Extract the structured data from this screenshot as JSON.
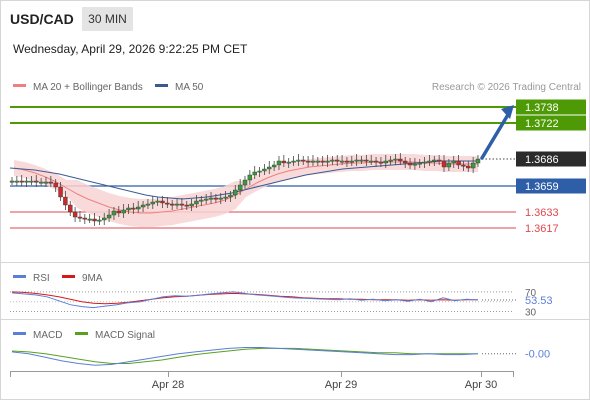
{
  "header": {
    "symbol": "USD/CAD",
    "timeframe": "30 MIN",
    "datetime": "Wednesday, April 29, 2026 9:22:25 PM CET",
    "credit": "Research © 2026 Trading Central"
  },
  "colors": {
    "green": "#4e9a06",
    "blue": "#2f5ea8",
    "red": "#e0474c",
    "bollinger": "#f8d3d3",
    "ma20": "#f08080",
    "ma50": "#3a5a94",
    "candle_up": "#3a9a3a",
    "candle_down": "#cc2a2a",
    "rsi": "#5b7fd6",
    "rsi_ma": "#d61a1a",
    "macd": "#5b7fd6",
    "macd_signal": "#5aa020",
    "arrow": "#2f5ea8"
  },
  "chart_data": [
    {
      "type": "candlestick",
      "legend": [
        {
          "name": "MA 20 + Bollinger Bands",
          "color": "#f08080"
        },
        {
          "name": "MA 50",
          "color": "#3a5a94"
        }
      ],
      "ylim": [
        1.359,
        1.375
      ],
      "current_price": 1.3686,
      "levels": [
        {
          "label": "1.3738",
          "value": 1.3738,
          "kind": "resistance"
        },
        {
          "label": "1.3722",
          "value": 1.3722,
          "kind": "resistance"
        },
        {
          "label": "1.3659",
          "value": 1.3659,
          "kind": "pivot"
        },
        {
          "label": "1.3633",
          "value": 1.3633,
          "kind": "support"
        },
        {
          "label": "1.3617",
          "value": 1.3617,
          "kind": "support"
        }
      ],
      "x_ticks": [
        "Apr 28",
        "Apr 29",
        "Apr 30"
      ],
      "close_series": [
        1.3664,
        1.3664,
        1.3663,
        1.3664,
        1.3664,
        1.3663,
        1.3663,
        1.3663,
        1.3662,
        1.3658,
        1.3648,
        1.364,
        1.3633,
        1.3628,
        1.3627,
        1.3626,
        1.3626,
        1.3624,
        1.3625,
        1.3627,
        1.363,
        1.3634,
        1.3632,
        1.3635,
        1.3637,
        1.3636,
        1.3638,
        1.364,
        1.3641,
        1.3643,
        1.3644,
        1.3642,
        1.3641,
        1.364,
        1.3641,
        1.364,
        1.3639,
        1.3641,
        1.3644,
        1.3645,
        1.3646,
        1.3647,
        1.3646,
        1.3647,
        1.3648,
        1.365,
        1.3655,
        1.366,
        1.3665,
        1.367,
        1.3673,
        1.3674,
        1.3676,
        1.3678,
        1.368,
        1.3684,
        1.3682,
        1.3683,
        1.3684,
        1.3685,
        1.3684,
        1.3683,
        1.3684,
        1.3684,
        1.3683,
        1.3684,
        1.3685,
        1.3684,
        1.3684,
        1.3683,
        1.3684,
        1.3685,
        1.3685,
        1.3684,
        1.3684,
        1.3683,
        1.3682,
        1.3684,
        1.3685,
        1.3686,
        1.3684,
        1.3682,
        1.368,
        1.3681,
        1.3682,
        1.3683,
        1.3684,
        1.3685,
        1.3684,
        1.3678,
        1.3682,
        1.3684,
        1.368,
        1.3679,
        1.3677,
        1.3682,
        1.3686
      ],
      "ma20_series": [
        1.3677,
        1.3675,
        1.3672,
        1.3668,
        1.3663,
        1.3657,
        1.3651,
        1.3646,
        1.3642,
        1.3638,
        1.3635,
        1.3633,
        1.3632,
        1.3632,
        1.3633,
        1.3634,
        1.3636,
        1.3638,
        1.364,
        1.3642,
        1.3645,
        1.365,
        1.3656,
        1.3662,
        1.3667,
        1.3671,
        1.3674,
        1.3676,
        1.3678,
        1.3679,
        1.368,
        1.3681,
        1.3682,
        1.3682,
        1.3683,
        1.3683,
        1.3683,
        1.3683,
        1.3683,
        1.3682,
        1.3682,
        1.3681,
        1.3681,
        1.3681,
        1.3681
      ],
      "ma50_series": [
        1.3677,
        1.3676,
        1.3675,
        1.3673,
        1.3671,
        1.3668,
        1.3665,
        1.3662,
        1.3659,
        1.3656,
        1.3653,
        1.365,
        1.3648,
        1.3647,
        1.3646,
        1.3647,
        1.3648,
        1.365,
        1.3652,
        1.3655,
        1.3658,
        1.3661,
        1.3664,
        1.3667,
        1.367,
        1.3672,
        1.3674,
        1.3676,
        1.3677,
        1.3678,
        1.3679,
        1.368,
        1.3681,
        1.3682,
        1.3683,
        1.3684,
        1.3684,
        1.3684,
        1.3684
      ]
    },
    {
      "type": "line",
      "legend": [
        {
          "name": "RSI",
          "color": "#5b7fd6"
        },
        {
          "name": "9MA",
          "color": "#d61a1a"
        }
      ],
      "ylim": [
        25,
        80
      ],
      "y_ticks": [
        70,
        30
      ],
      "current_label": "53.53",
      "rsi_series": [
        68,
        66,
        64,
        60,
        52,
        44,
        40,
        38,
        41,
        44,
        48,
        50,
        55,
        60,
        62,
        61,
        63,
        66,
        68,
        70,
        67,
        64,
        62,
        60,
        58,
        57,
        56,
        55,
        54,
        56,
        53,
        55,
        52,
        54,
        51,
        55,
        50,
        58,
        52,
        55,
        53.53
      ],
      "ma9_series": [
        70,
        69,
        67,
        64,
        60,
        55,
        50,
        47,
        46,
        47,
        49,
        52,
        55,
        58,
        60,
        61,
        63,
        65,
        66,
        67,
        66,
        65,
        63,
        61,
        60,
        58,
        57,
        56,
        56,
        55,
        55,
        54,
        54,
        54,
        53,
        54,
        53,
        54,
        53,
        54,
        54
      ]
    },
    {
      "type": "line",
      "legend": [
        {
          "name": "MACD",
          "color": "#5b7fd6"
        },
        {
          "name": "MACD Signal",
          "color": "#5aa020"
        }
      ],
      "ylim": [
        -0.0016,
        0.0012
      ],
      "current_label": "-0.00",
      "macd_series": [
        0.0002,
        0.0,
        -0.0004,
        -0.0008,
        -0.0011,
        -0.0013,
        -0.0012,
        -0.0009,
        -0.0006,
        -0.0003,
        0.0,
        0.0002,
        0.0004,
        0.0006,
        0.0007,
        0.0007,
        0.0006,
        0.0005,
        0.0004,
        0.0003,
        0.0002,
        0.0001,
        0.0,
        -0.0001,
        -0.0001,
        0.0,
        -0.0001,
        -0.0001,
        0.0
      ],
      "signal_series": [
        0.0003,
        0.0002,
        0.0,
        -0.0003,
        -0.0006,
        -0.0009,
        -0.0011,
        -0.0011,
        -0.0009,
        -0.0007,
        -0.0004,
        -0.0001,
        0.0001,
        0.0003,
        0.0005,
        0.0006,
        0.0006,
        0.0006,
        0.0005,
        0.0004,
        0.0003,
        0.0002,
        0.0001,
        0.0001,
        0.0,
        0.0,
        0.0,
        0.0,
        0.0
      ]
    }
  ]
}
